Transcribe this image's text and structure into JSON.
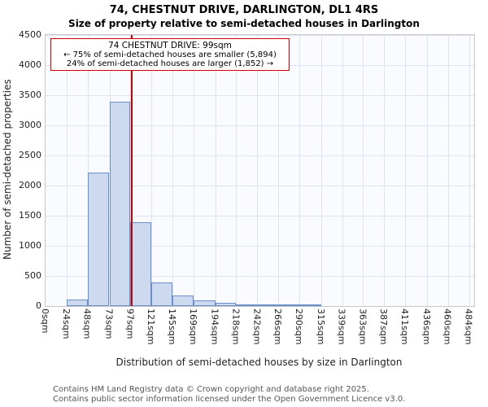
{
  "chart_data": {
    "type": "bar",
    "title": "74, CHESTNUT DRIVE, DARLINGTON, DL1 4RS",
    "subtitle": "Size of property relative to semi-detached houses in Darlington",
    "xlabel": "Distribution of semi-detached houses by size in Darlington",
    "ylabel": "Number of semi-detached properties",
    "ylim": [
      0,
      4500
    ],
    "y_ticks": [
      0,
      500,
      1000,
      1500,
      2000,
      2500,
      3000,
      3500,
      4000,
      4500
    ],
    "x_max": 490,
    "bin_edges": [
      0,
      24,
      48,
      73,
      97,
      121,
      145,
      169,
      194,
      218,
      242,
      266,
      290,
      315,
      339,
      363,
      387,
      411,
      436,
      460,
      484
    ],
    "x_tick_labels": [
      "0sqm",
      "24sqm",
      "48sqm",
      "73sqm",
      "97sqm",
      "121sqm",
      "145sqm",
      "169sqm",
      "194sqm",
      "218sqm",
      "242sqm",
      "266sqm",
      "290sqm",
      "315sqm",
      "339sqm",
      "363sqm",
      "387sqm",
      "411sqm",
      "436sqm",
      "460sqm",
      "484sqm"
    ],
    "values": [
      0,
      110,
      2220,
      3390,
      1390,
      390,
      175,
      95,
      50,
      30,
      20,
      15,
      10,
      0,
      0,
      0,
      0,
      0,
      0,
      0
    ],
    "marker_value": 99,
    "annotation": {
      "line1": "74 CHESTNUT DRIVE: 99sqm",
      "line2": "← 75% of semi-detached houses are smaller (5,894)",
      "line3": "24% of semi-detached houses are larger (1,852) →"
    },
    "colors": {
      "bar_fill": "#ccd9ef",
      "bar_border": "#6a8fc7",
      "marker_line": "#cc0000",
      "annotation_border": "#cc0000",
      "grid": "#dde3f2"
    },
    "legend": "none",
    "grid": "on"
  },
  "footer": {
    "line1": "Contains HM Land Registry data © Crown copyright and database right 2025.",
    "line2": "Contains public sector information licensed under the Open Government Licence v3.0."
  }
}
